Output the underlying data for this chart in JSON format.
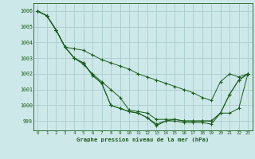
{
  "background_color": "#cde8e8",
  "grid_color": "#aacccc",
  "line_color": "#1a5c1a",
  "marker_color": "#1a5c1a",
  "title": "Graphe pression niveau de la mer (hPa)",
  "xlim": [
    -0.5,
    23.5
  ],
  "ylim": [
    998.4,
    1006.5
  ],
  "yticks": [
    999,
    1000,
    1001,
    1002,
    1003,
    1004,
    1005,
    1006
  ],
  "xticks": [
    0,
    1,
    2,
    3,
    4,
    5,
    6,
    7,
    8,
    9,
    10,
    11,
    12,
    13,
    14,
    15,
    16,
    17,
    18,
    19,
    20,
    21,
    22,
    23
  ],
  "lines": [
    [
      1006.0,
      1005.7,
      1004.8,
      1003.7,
      1003.6,
      1003.5,
      1003.2,
      1002.9,
      1002.7,
      1002.5,
      1002.3,
      1002.0,
      1001.8,
      1001.6,
      1001.4,
      1001.2,
      1001.0,
      1000.8,
      1000.5,
      1000.3,
      1001.5,
      1002.0,
      1001.8,
      1002.0
    ],
    [
      1006.0,
      1005.7,
      1004.8,
      1003.7,
      1003.0,
      1002.6,
      1002.0,
      1001.5,
      1001.0,
      1000.5,
      999.7,
      999.6,
      999.5,
      999.1,
      999.1,
      999.1,
      999.0,
      999.0,
      999.0,
      999.0,
      999.5,
      1000.7,
      1001.6,
      1002.0
    ],
    [
      1006.0,
      1005.7,
      1004.8,
      1003.7,
      1003.0,
      1002.7,
      1001.9,
      1001.4,
      1000.0,
      999.8,
      999.6,
      999.5,
      999.2,
      998.7,
      999.0,
      999.0,
      998.9,
      998.9,
      998.9,
      998.8,
      999.5,
      999.5,
      999.8,
      1002.0
    ],
    [
      1006.0,
      1005.7,
      1004.8,
      1003.7,
      1003.0,
      1002.7,
      1001.9,
      1001.4,
      1000.0,
      999.8,
      999.6,
      999.5,
      999.2,
      998.8,
      999.0,
      999.1,
      999.0,
      999.0,
      999.0,
      999.0,
      999.5,
      1000.7,
      1001.6,
      1002.0
    ]
  ]
}
